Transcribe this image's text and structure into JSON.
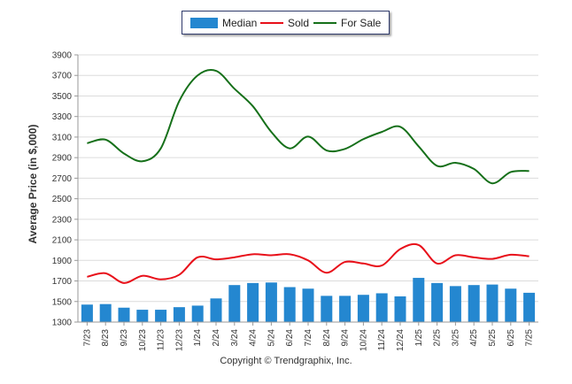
{
  "legend": {
    "median_label": "Median",
    "sold_label": "Sold",
    "forsale_label": "For Sale"
  },
  "copyright": "Copyright © Trendgraphix, Inc.",
  "colors": {
    "median": "#2487d0",
    "sold": "#e8101a",
    "forsale": "#16701a",
    "grid": "#dcdcdc"
  },
  "chart_data": {
    "type": "bar",
    "ylabel": "Average Price (in $,000)",
    "ylim": [
      1300,
      3900
    ],
    "yticks": [
      1300,
      1500,
      1700,
      1900,
      2100,
      2300,
      2500,
      2700,
      2900,
      3100,
      3300,
      3500,
      3700,
      3900
    ],
    "grid": true,
    "legend_position": "top",
    "categories": [
      "7/23",
      "8/23",
      "9/23",
      "10/23",
      "11/23",
      "12/23",
      "1/24",
      "2/24",
      "3/24",
      "4/24",
      "5/24",
      "6/24",
      "7/24",
      "8/24",
      "9/24",
      "10/24",
      "11/24",
      "12/24",
      "1/25",
      "2/25",
      "3/25",
      "4/25",
      "5/25",
      "6/25",
      "7/25"
    ],
    "series": [
      {
        "name": "Median",
        "type": "bar",
        "values": [
          1470,
          1475,
          1440,
          1420,
          1420,
          1445,
          1460,
          1530,
          1660,
          1680,
          1685,
          1640,
          1625,
          1555,
          1555,
          1565,
          1580,
          1550,
          1730,
          1680,
          1650,
          1660,
          1665,
          1625,
          1585
        ]
      },
      {
        "name": "Sold",
        "type": "line",
        "values": [
          1740,
          1775,
          1680,
          1750,
          1715,
          1760,
          1930,
          1910,
          1930,
          1960,
          1950,
          1960,
          1900,
          1780,
          1885,
          1870,
          1850,
          2010,
          2050,
          1870,
          1950,
          1930,
          1915,
          1955,
          1940
        ]
      },
      {
        "name": "For Sale",
        "type": "line",
        "values": [
          3040,
          3075,
          2940,
          2865,
          2990,
          3450,
          3700,
          3745,
          3570,
          3400,
          3150,
          2990,
          3105,
          2970,
          2985,
          3080,
          3150,
          3200,
          3010,
          2820,
          2850,
          2790,
          2650,
          2760,
          2770
        ]
      }
    ]
  }
}
